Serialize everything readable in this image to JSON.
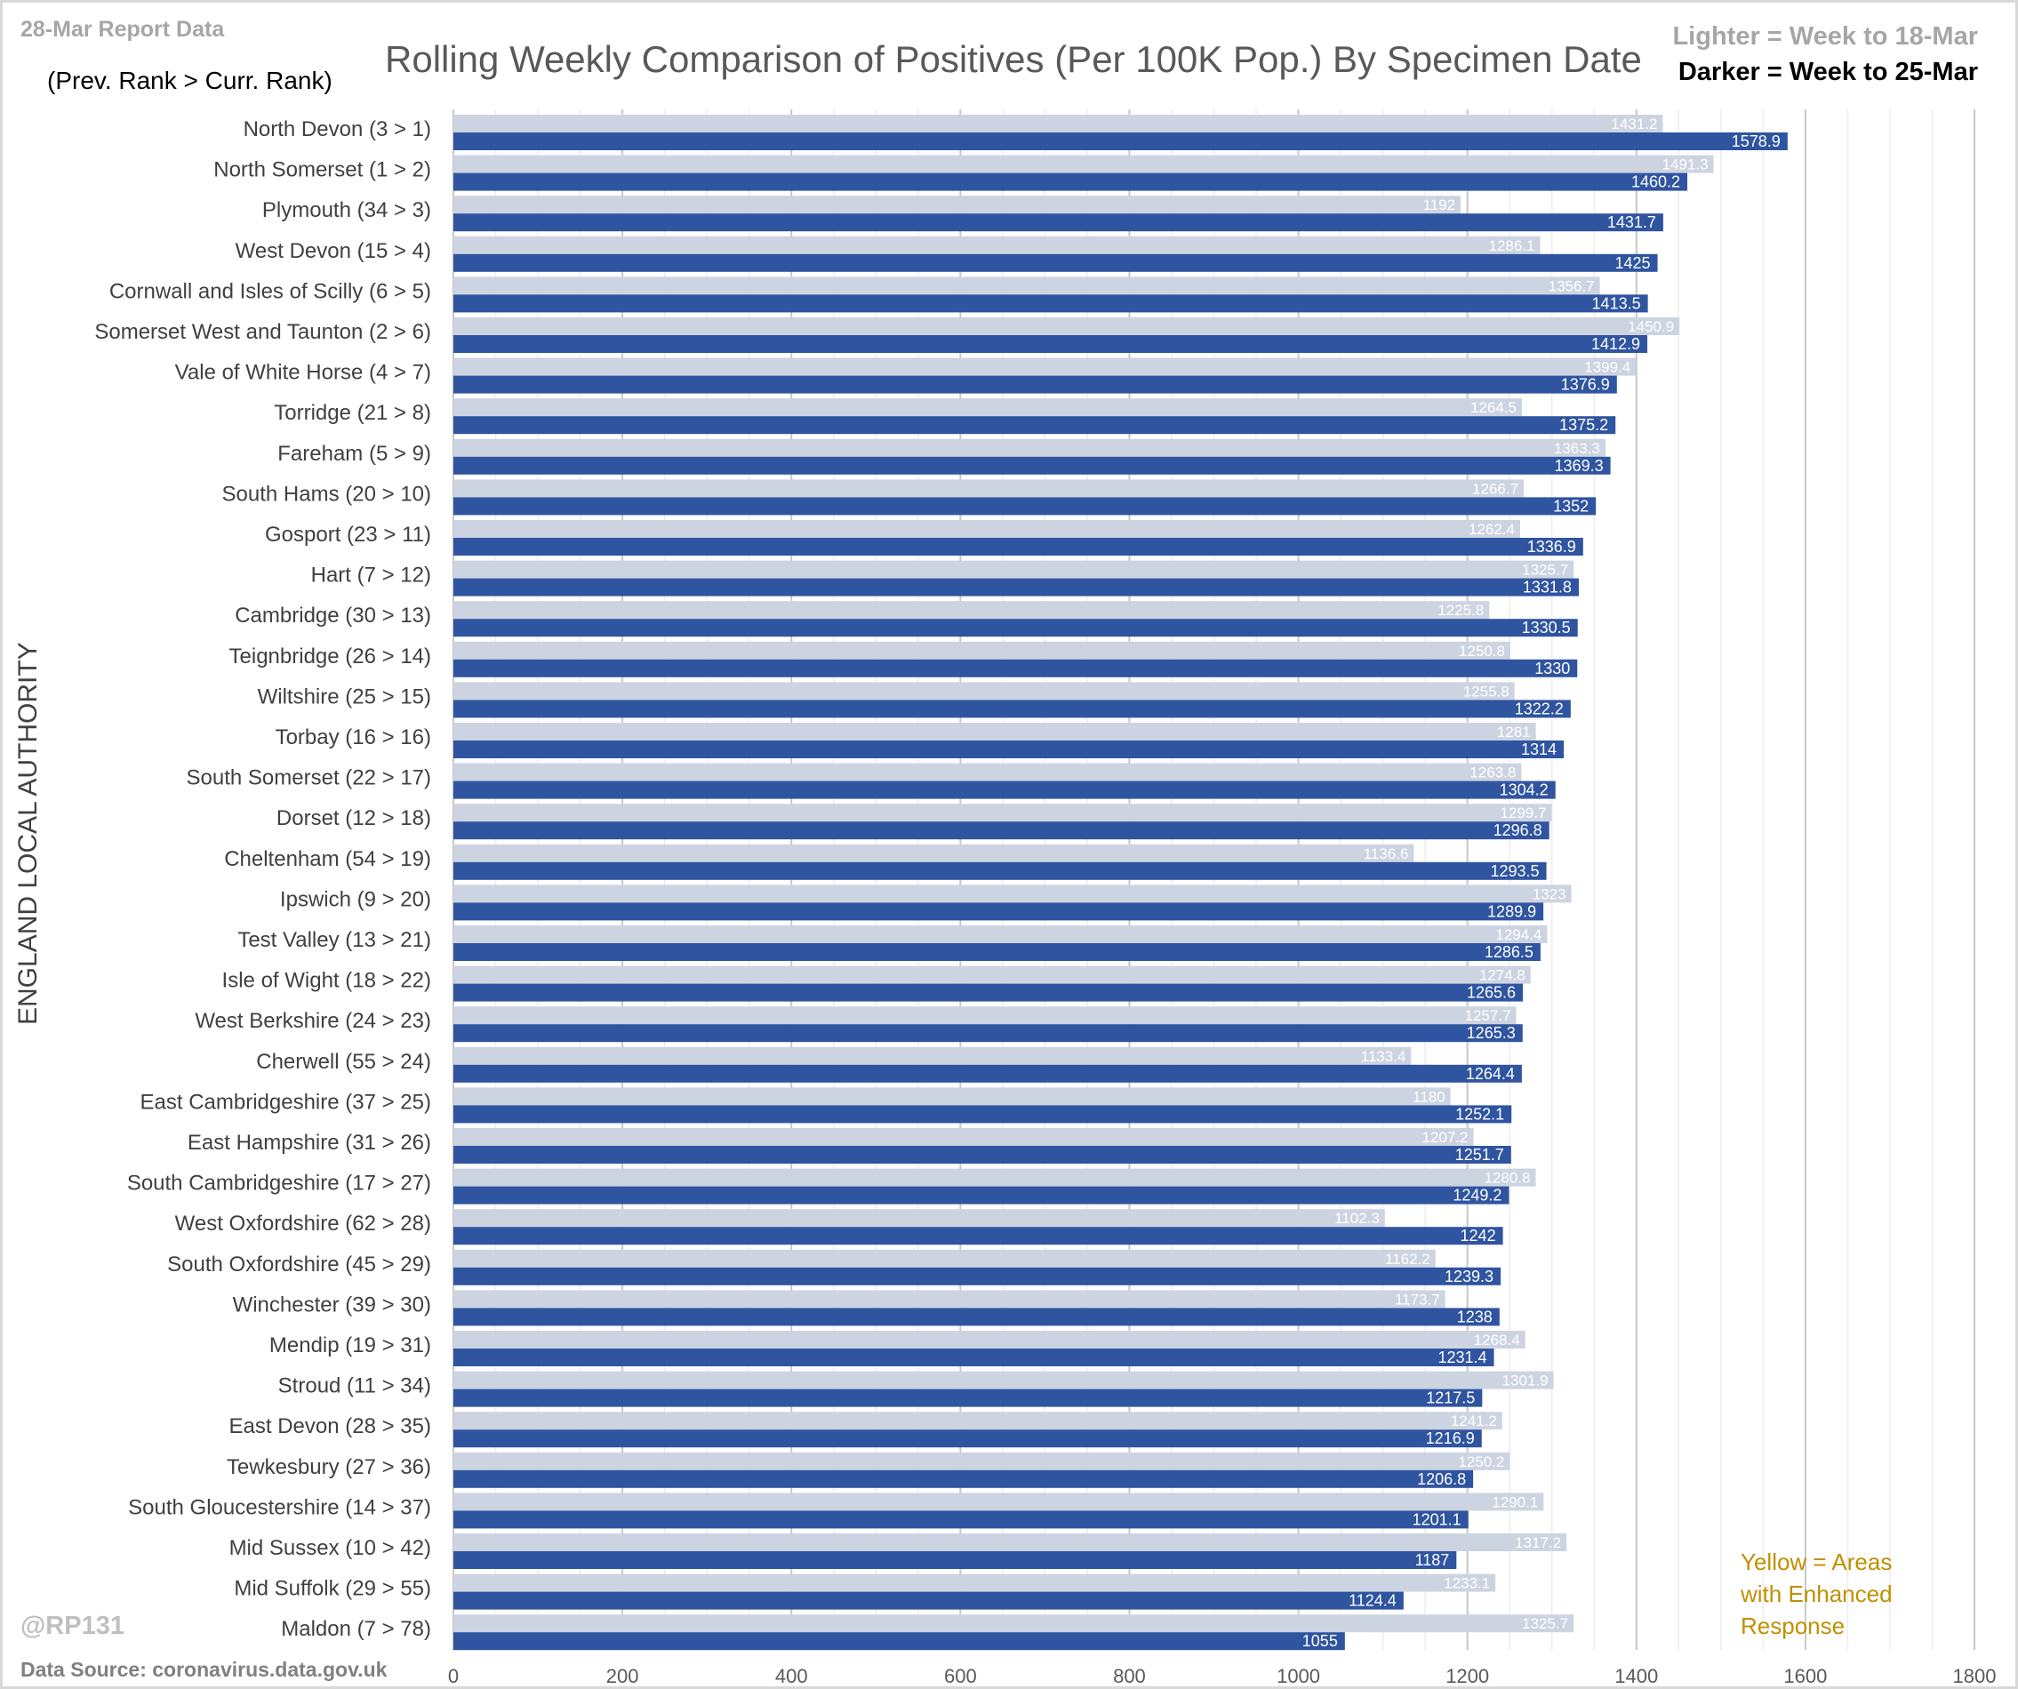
{
  "header": {
    "report": "28-Mar Report Data",
    "rank_note": "(Prev. Rank > Curr. Rank)",
    "legend_lighter": "Lighter =  Week to 18-Mar",
    "legend_darker": "Darker =  Week to 25-Mar",
    "handle": "@RP131",
    "source": "Data Source: coronavirus.data.gov.uk",
    "note": "Yellow = Areas with Enhanced Response"
  },
  "colors": {
    "lighter": "#cdd4e1",
    "darker": "#2f54a0",
    "grid": "#d9d9d9"
  },
  "chart_data": {
    "type": "bar",
    "title": "Rolling Weekly Comparison of Positives  (Per 100K Pop.) By Specimen Date",
    "ylabel": "ENGLAND LOCAL AUTHORITY",
    "xlabel": "",
    "xlim": [
      0,
      1800
    ],
    "xticks": [
      0,
      200,
      400,
      600,
      800,
      1000,
      1200,
      1400,
      1600,
      1800
    ],
    "grid": true,
    "legend": "top-right",
    "categories": [
      "North Devon (3 > 1)",
      "North Somerset (1 > 2)",
      "Plymouth (34 > 3)",
      "West Devon (15 > 4)",
      "Cornwall and Isles of Scilly (6 > 5)",
      "Somerset West and Taunton (2 > 6)",
      "Vale of White Horse (4 > 7)",
      "Torridge (21 > 8)",
      "Fareham (5 > 9)",
      "South Hams (20 > 10)",
      "Gosport (23 > 11)",
      "Hart (7 > 12)",
      "Cambridge (30 > 13)",
      "Teignbridge (26 > 14)",
      "Wiltshire (25 > 15)",
      "Torbay (16 > 16)",
      "South Somerset (22 > 17)",
      "Dorset (12 > 18)",
      "Cheltenham (54 > 19)",
      "Ipswich (9 > 20)",
      "Test Valley (13 > 21)",
      "Isle of Wight (18 > 22)",
      "West Berkshire (24 > 23)",
      "Cherwell (55 > 24)",
      "East Cambridgeshire (37 > 25)",
      "East Hampshire (31 > 26)",
      "South Cambridgeshire (17 > 27)",
      "West Oxfordshire (62 > 28)",
      "South Oxfordshire (45 > 29)",
      "Winchester (39 > 30)",
      "Mendip (19 > 31)",
      "Stroud (11 > 34)",
      "East Devon (28 > 35)",
      "Tewkesbury (27 > 36)",
      "South Gloucestershire (14 > 37)",
      "Mid Sussex (10 > 42)",
      "Mid Suffolk (29 > 55)",
      "Maldon (7 > 78)"
    ],
    "series": [
      {
        "name": "Week to 18-Mar",
        "values": [
          1431.2,
          1491.3,
          1192,
          1286.1,
          1356.7,
          1450.9,
          1399.4,
          1264.5,
          1363.3,
          1266.7,
          1262.4,
          1325.7,
          1225.8,
          1250.8,
          1255.8,
          1281,
          1263.8,
          1299.7,
          1136.6,
          1323,
          1294.4,
          1274.8,
          1257.7,
          1133.4,
          1180,
          1207.2,
          1280.8,
          1102.3,
          1162.2,
          1173.7,
          1268.4,
          1301.9,
          1241.2,
          1250.2,
          1290.1,
          1317.2,
          1233.1,
          1325.7
        ]
      },
      {
        "name": "Week to 25-Mar",
        "values": [
          1578.9,
          1460.2,
          1431.7,
          1425,
          1413.5,
          1412.9,
          1376.9,
          1375.2,
          1369.3,
          1352,
          1336.9,
          1331.8,
          1330.5,
          1330,
          1322.2,
          1314,
          1304.2,
          1296.8,
          1293.5,
          1289.9,
          1286.5,
          1265.6,
          1265.3,
          1264.4,
          1252.1,
          1251.7,
          1249.2,
          1242,
          1239.3,
          1238,
          1231.4,
          1217.5,
          1216.9,
          1206.8,
          1201.1,
          1187,
          1124.4,
          1055
        ]
      }
    ]
  }
}
